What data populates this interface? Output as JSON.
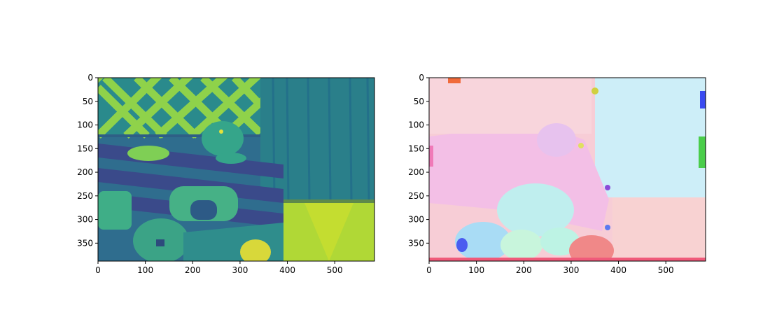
{
  "chart_data": [
    {
      "type": "heatmap",
      "title": "",
      "xlabel": "",
      "ylabel": "",
      "xlim": [
        0,
        584
      ],
      "ylim": [
        388,
        0
      ],
      "x_ticks": [
        0,
        100,
        200,
        300,
        400,
        500
      ],
      "y_ticks": [
        0,
        50,
        100,
        150,
        200,
        250,
        300,
        350
      ],
      "colormap": "viridis",
      "description_colors": [
        "#440154",
        "#3b528b",
        "#21918c",
        "#5ec962",
        "#fde725"
      ]
    },
    {
      "type": "heatmap",
      "title": "",
      "xlabel": "",
      "ylabel": "",
      "xlim": [
        0,
        584
      ],
      "ylim": [
        388,
        0
      ],
      "x_ticks": [
        0,
        100,
        200,
        300,
        400,
        500
      ],
      "y_ticks": [
        0,
        50,
        100,
        150,
        200,
        250,
        300,
        350
      ],
      "colormap": "hsv-flow",
      "description_colors": [
        "#f7c9d2",
        "#cdeff7",
        "#f2b8f2",
        "#bdf0e8",
        "#f08a8a"
      ]
    }
  ]
}
